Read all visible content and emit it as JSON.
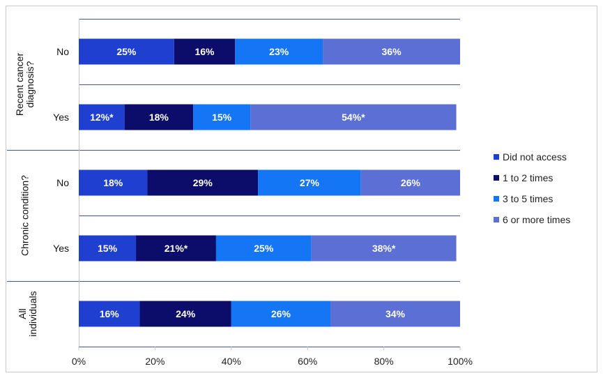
{
  "chart_data": {
    "type": "bar",
    "orientation": "horizontal",
    "stacked": true,
    "percent": true,
    "xlim": [
      0,
      100
    ],
    "x_ticks": [
      "0%",
      "20%",
      "40%",
      "60%",
      "80%",
      "100%"
    ],
    "groups": [
      {
        "label": "Recent cancer diagnosis?",
        "rows": [
          {
            "label": "No",
            "values": [
              25,
              16,
              23,
              36
            ],
            "labels": [
              "25%",
              "16%",
              "23%",
              "36%"
            ]
          },
          {
            "label": "Yes",
            "values": [
              12,
              18,
              15,
              54
            ],
            "labels": [
              "12%*",
              "18%",
              "15%",
              "54%*"
            ]
          }
        ]
      },
      {
        "label": "Chronic condition?",
        "rows": [
          {
            "label": "No",
            "values": [
              18,
              29,
              27,
              26
            ],
            "labels": [
              "18%",
              "29%",
              "27%",
              "26%"
            ]
          },
          {
            "label": "Yes",
            "values": [
              15,
              21,
              25,
              38
            ],
            "labels": [
              "15%",
              "21%*",
              "25%",
              "38%*"
            ]
          }
        ]
      },
      {
        "label": "All individuals",
        "rows": [
          {
            "label": "",
            "values": [
              16,
              24,
              26,
              34
            ],
            "labels": [
              "16%",
              "24%",
              "26%",
              "34%"
            ]
          }
        ]
      }
    ],
    "series": [
      {
        "name": "Did not access",
        "color": "#1f3fd0"
      },
      {
        "name": "1 to 2 times",
        "color": "#0c0d6b"
      },
      {
        "name": "3 to 5 times",
        "color": "#1475f5"
      },
      {
        "name": "6 or more times",
        "color": "#5b6fd4"
      }
    ],
    "legend_position": "right",
    "grid": false
  }
}
